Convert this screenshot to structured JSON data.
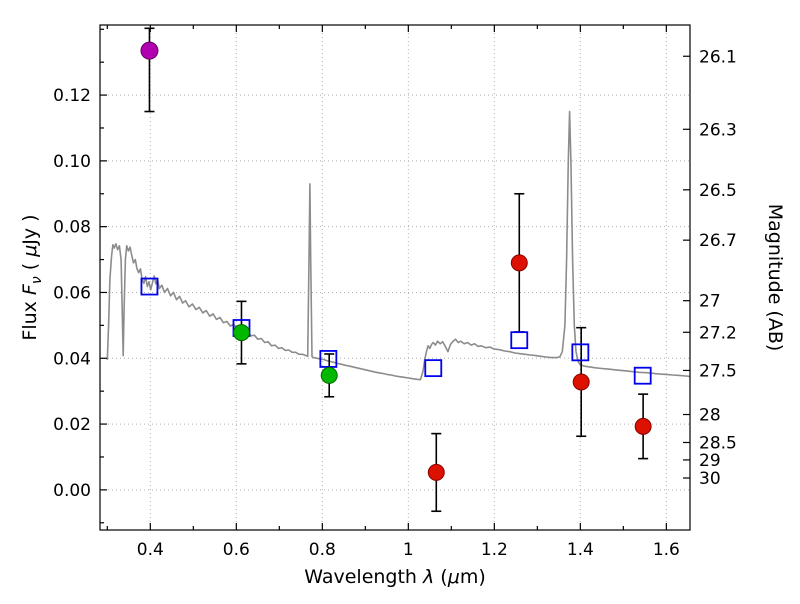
{
  "chart_data": {
    "type": "line+scatter",
    "title": "",
    "xlabel": [
      {
        "t": "Wavelength  "
      },
      {
        "t": "λ",
        "i": 1
      },
      {
        "t": " ("
      },
      {
        "t": "μ",
        "i": 1
      },
      {
        "t": "m)"
      }
    ],
    "ylabel_left": [
      {
        "t": "Flux  "
      },
      {
        "t": "F",
        "i": 1
      },
      {
        "t": "ν",
        "i": 1,
        "sub": 1
      },
      {
        "t": "  ( "
      },
      {
        "t": "μ",
        "i": 1
      },
      {
        "t": "Jy )"
      }
    ],
    "ylabel_right": [
      {
        "t": "Magnitude (AB)"
      }
    ],
    "xlim": [
      0.283,
      1.655
    ],
    "ylim": [
      -0.0122,
      0.1413
    ],
    "grid": {
      "on": true,
      "style": "dotted",
      "color": "#b0b0b0"
    },
    "xticks": [
      {
        "v": 0.4,
        "label": "0.4"
      },
      {
        "v": 0.6,
        "label": "0.6"
      },
      {
        "v": 0.8,
        "label": "0.8"
      },
      {
        "v": 1.0,
        "label": "1"
      },
      {
        "v": 1.2,
        "label": "1.2"
      },
      {
        "v": 1.4,
        "label": "1.4"
      },
      {
        "v": 1.6,
        "label": "1.6"
      }
    ],
    "yticks": [
      {
        "v": 0.0,
        "label": "0.00"
      },
      {
        "v": 0.02,
        "label": "0.02"
      },
      {
        "v": 0.04,
        "label": "0.04"
      },
      {
        "v": 0.06,
        "label": "0.06"
      },
      {
        "v": 0.08,
        "label": "0.08"
      },
      {
        "v": 0.1,
        "label": "0.10"
      },
      {
        "v": 0.12,
        "label": "0.12"
      }
    ],
    "right_ticks": [
      {
        "v": 0.1318,
        "label": "26.1"
      },
      {
        "v": 0.1096,
        "label": "26.3"
      },
      {
        "v": 0.0912,
        "label": "26.5"
      },
      {
        "v": 0.0759,
        "label": "26.7"
      },
      {
        "v": 0.0575,
        "label": "27"
      },
      {
        "v": 0.0479,
        "label": "27.2"
      },
      {
        "v": 0.0363,
        "label": "27.5"
      },
      {
        "v": 0.0229,
        "label": "28"
      },
      {
        "v": 0.0144,
        "label": "28.5"
      },
      {
        "v": 0.0091,
        "label": "29"
      },
      {
        "v": 0.0036,
        "label": "30"
      }
    ],
    "minor": {
      "x_step": 0.1,
      "y_step": 0.01
    },
    "spectrum": {
      "name": "model-spectrum",
      "color": "#8c8c8c",
      "width": 1.6,
      "points": [
        [
          0.3,
          0.0395
        ],
        [
          0.303,
          0.05
        ],
        [
          0.306,
          0.064
        ],
        [
          0.31,
          0.0712
        ],
        [
          0.313,
          0.0745
        ],
        [
          0.316,
          0.0735
        ],
        [
          0.32,
          0.0748
        ],
        [
          0.324,
          0.073
        ],
        [
          0.328,
          0.0742
        ],
        [
          0.332,
          0.07
        ],
        [
          0.335,
          0.052
        ],
        [
          0.337,
          0.0408
        ],
        [
          0.339,
          0.055
        ],
        [
          0.342,
          0.07
        ],
        [
          0.345,
          0.0742
        ],
        [
          0.349,
          0.0726
        ],
        [
          0.353,
          0.0738
        ],
        [
          0.357,
          0.0712
        ],
        [
          0.361,
          0.069
        ],
        [
          0.365,
          0.07
        ],
        [
          0.369,
          0.0672
        ],
        [
          0.373,
          0.066
        ],
        [
          0.377,
          0.0672
        ],
        [
          0.381,
          0.064
        ],
        [
          0.385,
          0.0628
        ],
        [
          0.389,
          0.0648
        ],
        [
          0.393,
          0.0618
        ],
        [
          0.397,
          0.0632
        ],
        [
          0.401,
          0.0608
        ],
        [
          0.405,
          0.063
        ],
        [
          0.409,
          0.065
        ],
        [
          0.413,
          0.0626
        ],
        [
          0.417,
          0.064
        ],
        [
          0.421,
          0.0612
        ],
        [
          0.427,
          0.0622
        ],
        [
          0.433,
          0.06
        ],
        [
          0.44,
          0.0612
        ],
        [
          0.447,
          0.059
        ],
        [
          0.454,
          0.06
        ],
        [
          0.461,
          0.0578
        ],
        [
          0.468,
          0.0588
        ],
        [
          0.475,
          0.0568
        ],
        [
          0.482,
          0.0575
        ],
        [
          0.49,
          0.0556
        ],
        [
          0.498,
          0.0565
        ],
        [
          0.506,
          0.0548
        ],
        [
          0.514,
          0.0555
        ],
        [
          0.522,
          0.0538
        ],
        [
          0.53,
          0.0545
        ],
        [
          0.538,
          0.0528
        ],
        [
          0.546,
          0.0535
        ],
        [
          0.554,
          0.0518
        ],
        [
          0.562,
          0.0524
        ],
        [
          0.57,
          0.0508
        ],
        [
          0.578,
          0.0512
        ],
        [
          0.586,
          0.0498
        ],
        [
          0.594,
          0.0503
        ],
        [
          0.602,
          0.049
        ],
        [
          0.61,
          0.0492
        ],
        [
          0.618,
          0.0478
        ],
        [
          0.626,
          0.0482
        ],
        [
          0.634,
          0.0468
        ],
        [
          0.642,
          0.047
        ],
        [
          0.65,
          0.0458
        ],
        [
          0.658,
          0.046
        ],
        [
          0.666,
          0.0448
        ],
        [
          0.674,
          0.045
        ],
        [
          0.682,
          0.0438
        ],
        [
          0.69,
          0.044
        ],
        [
          0.698,
          0.043
        ],
        [
          0.706,
          0.0432
        ],
        [
          0.714,
          0.0424
        ],
        [
          0.722,
          0.0425
        ],
        [
          0.73,
          0.0418
        ],
        [
          0.738,
          0.0418
        ],
        [
          0.746,
          0.0412
        ],
        [
          0.754,
          0.0412
        ],
        [
          0.762,
          0.0408
        ],
        [
          0.766,
          0.0406
        ],
        [
          0.769,
          0.07
        ],
        [
          0.771,
          0.093
        ],
        [
          0.773,
          0.07
        ],
        [
          0.776,
          0.0405
        ],
        [
          0.78,
          0.0402
        ],
        [
          0.788,
          0.04
        ],
        [
          0.796,
          0.0398
        ],
        [
          0.804,
          0.0396
        ],
        [
          0.812,
          0.0392
        ],
        [
          0.82,
          0.039
        ],
        [
          0.828,
          0.0387
        ],
        [
          0.836,
          0.0384
        ],
        [
          0.844,
          0.0382
        ],
        [
          0.852,
          0.0379
        ],
        [
          0.86,
          0.0377
        ],
        [
          0.87,
          0.0374
        ],
        [
          0.88,
          0.0371
        ],
        [
          0.89,
          0.0368
        ],
        [
          0.9,
          0.0365
        ],
        [
          0.91,
          0.0362
        ],
        [
          0.92,
          0.0359
        ],
        [
          0.93,
          0.0356
        ],
        [
          0.94,
          0.0354
        ],
        [
          0.95,
          0.0351
        ],
        [
          0.96,
          0.0349
        ],
        [
          0.97,
          0.0346
        ],
        [
          0.98,
          0.0344
        ],
        [
          0.99,
          0.0342
        ],
        [
          1.0,
          0.034
        ],
        [
          1.01,
          0.0338
        ],
        [
          1.02,
          0.0336
        ],
        [
          1.028,
          0.0335
        ],
        [
          1.034,
          0.036
        ],
        [
          1.038,
          0.0395
        ],
        [
          1.042,
          0.042
        ],
        [
          1.046,
          0.0438
        ],
        [
          1.05,
          0.043
        ],
        [
          1.054,
          0.0442
        ],
        [
          1.058,
          0.0448
        ],
        [
          1.063,
          0.044
        ],
        [
          1.068,
          0.0452
        ],
        [
          1.074,
          0.0444
        ],
        [
          1.08,
          0.045
        ],
        [
          1.086,
          0.0436
        ],
        [
          1.092,
          0.042
        ],
        [
          1.098,
          0.0442
        ],
        [
          1.104,
          0.0452
        ],
        [
          1.11,
          0.0458
        ],
        [
          1.116,
          0.0448
        ],
        [
          1.122,
          0.0452
        ],
        [
          1.13,
          0.0444
        ],
        [
          1.138,
          0.0448
        ],
        [
          1.146,
          0.044
        ],
        [
          1.154,
          0.0444
        ],
        [
          1.162,
          0.0436
        ],
        [
          1.17,
          0.0438
        ],
        [
          1.18,
          0.0432
        ],
        [
          1.19,
          0.0434
        ],
        [
          1.2,
          0.0428
        ],
        [
          1.212,
          0.0426
        ],
        [
          1.224,
          0.0422
        ],
        [
          1.236,
          0.042
        ],
        [
          1.248,
          0.0416
        ],
        [
          1.26,
          0.0414
        ],
        [
          1.272,
          0.0412
        ],
        [
          1.284,
          0.041
        ],
        [
          1.296,
          0.0408
        ],
        [
          1.308,
          0.0406
        ],
        [
          1.32,
          0.0404
        ],
        [
          1.332,
          0.0402
        ],
        [
          1.344,
          0.0402
        ],
        [
          1.352,
          0.0404
        ],
        [
          1.358,
          0.042
        ],
        [
          1.364,
          0.05
        ],
        [
          1.368,
          0.07
        ],
        [
          1.372,
          0.1
        ],
        [
          1.375,
          0.115
        ],
        [
          1.378,
          0.1
        ],
        [
          1.382,
          0.07
        ],
        [
          1.386,
          0.05
        ],
        [
          1.39,
          0.042
        ],
        [
          1.395,
          0.039
        ],
        [
          1.4,
          0.038
        ],
        [
          1.41,
          0.0376
        ],
        [
          1.42,
          0.0374
        ],
        [
          1.435,
          0.0371
        ],
        [
          1.45,
          0.0369
        ],
        [
          1.465,
          0.0367
        ],
        [
          1.48,
          0.0365
        ],
        [
          1.495,
          0.0363
        ],
        [
          1.51,
          0.0361
        ],
        [
          1.525,
          0.0359
        ],
        [
          1.54,
          0.0357
        ],
        [
          1.555,
          0.0356
        ],
        [
          1.57,
          0.0354
        ],
        [
          1.585,
          0.0352
        ],
        [
          1.6,
          0.0351
        ],
        [
          1.615,
          0.0349
        ],
        [
          1.63,
          0.0348
        ],
        [
          1.645,
          0.0346
        ],
        [
          1.655,
          0.0345
        ]
      ]
    },
    "series": [
      {
        "name": "model-photometry-squares",
        "marker": "open-square",
        "color": "#0000ee",
        "size": 16,
        "points": [
          {
            "x": 0.398,
            "y": 0.0618
          },
          {
            "x": 0.612,
            "y": 0.0492
          },
          {
            "x": 0.814,
            "y": 0.0398
          },
          {
            "x": 1.058,
            "y": 0.037
          },
          {
            "x": 1.258,
            "y": 0.0455
          },
          {
            "x": 1.4,
            "y": 0.0418
          },
          {
            "x": 1.545,
            "y": 0.0347
          }
        ]
      },
      {
        "name": "observed-photometry-green",
        "marker": "circle",
        "color": "#00b800",
        "edge": "#006600",
        "size": 16,
        "points": [
          {
            "x": 0.612,
            "y": 0.0478,
            "err": 0.0095
          },
          {
            "x": 0.816,
            "y": 0.0348,
            "err": 0.0065
          }
        ]
      },
      {
        "name": "observed-photometry-red",
        "marker": "circle",
        "color": "#dd1100",
        "edge": "#880000",
        "size": 16,
        "points": [
          {
            "x": 1.065,
            "y": 0.0053,
            "err": 0.0118
          },
          {
            "x": 1.258,
            "y": 0.069,
            "err": 0.021
          },
          {
            "x": 1.402,
            "y": 0.0328,
            "err": 0.0165
          },
          {
            "x": 1.546,
            "y": 0.0193,
            "err": 0.0098
          }
        ]
      },
      {
        "name": "observed-photometry-magenta",
        "marker": "circle",
        "color": "#b000b0",
        "edge": "#6a006a",
        "size": 17,
        "points": [
          {
            "x": 0.398,
            "y": 0.1335,
            "err_lo": 0.0185,
            "err_hi": 0.0068
          }
        ]
      }
    ],
    "errorbar_color": "#000000"
  }
}
